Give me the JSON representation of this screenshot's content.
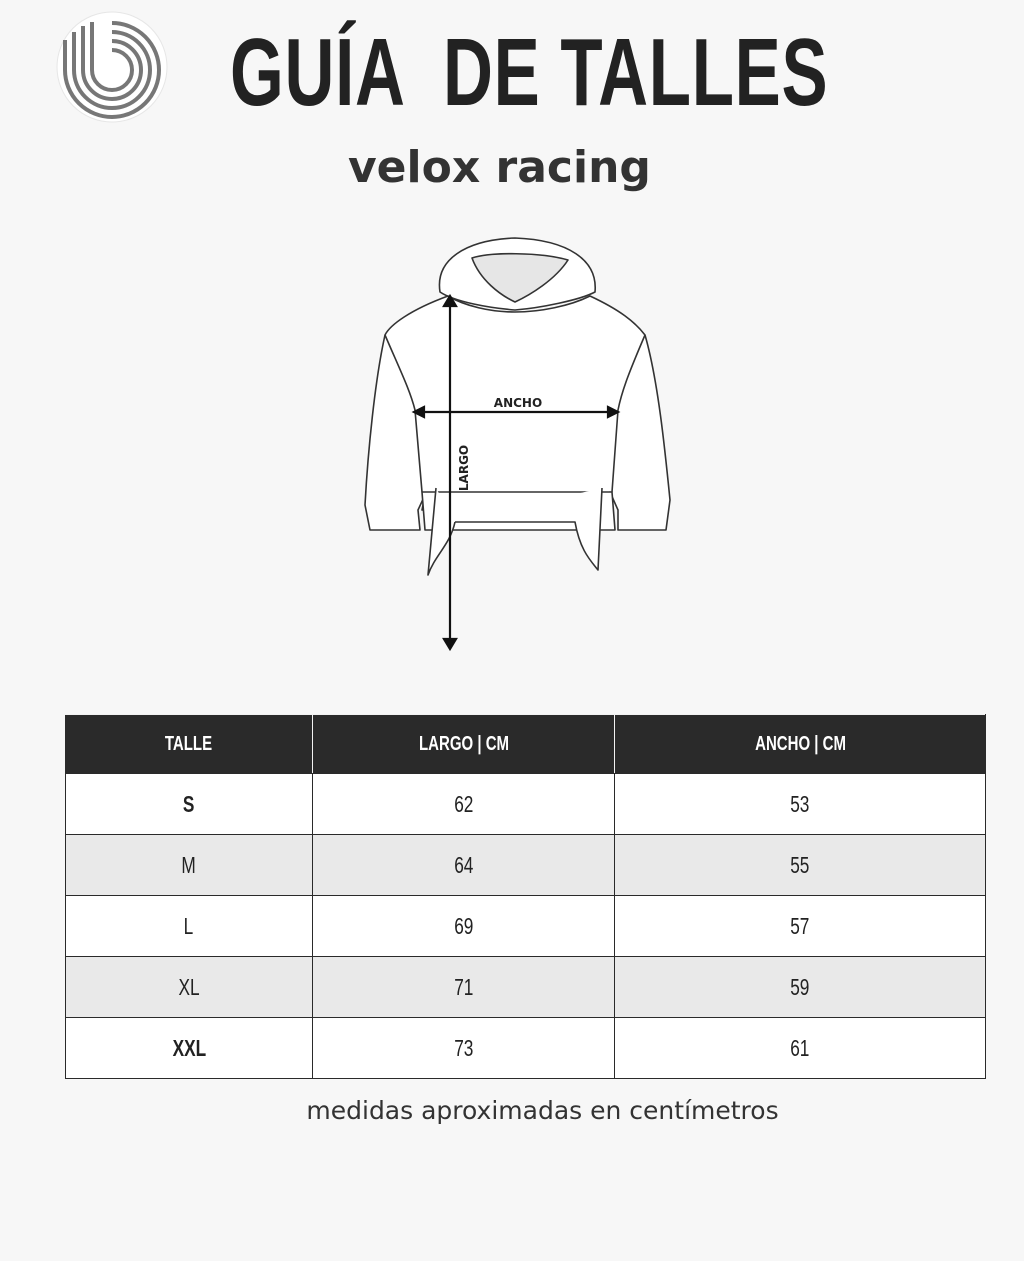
{
  "header": {
    "title": "GUÍA  DE TALLES",
    "subtitle": "velox racing",
    "logo": "brand-b-logo"
  },
  "diagram": {
    "width_label": "ANCHO",
    "length_label": "LARGO"
  },
  "table": {
    "columns": [
      "TALLE",
      "LARGO | CM",
      "ANCHO | CM"
    ],
    "rows": [
      [
        "S",
        "62",
        "53"
      ],
      [
        "M",
        "64",
        "55"
      ],
      [
        "L",
        "69",
        "57"
      ],
      [
        "XL",
        "71",
        "59"
      ],
      [
        "XXL",
        "73",
        "61"
      ]
    ],
    "header_color": "#2a2a2a",
    "stripe_color": "#e9e9e9"
  },
  "footer": {
    "note": "medidas aproximadas en centímetros"
  }
}
